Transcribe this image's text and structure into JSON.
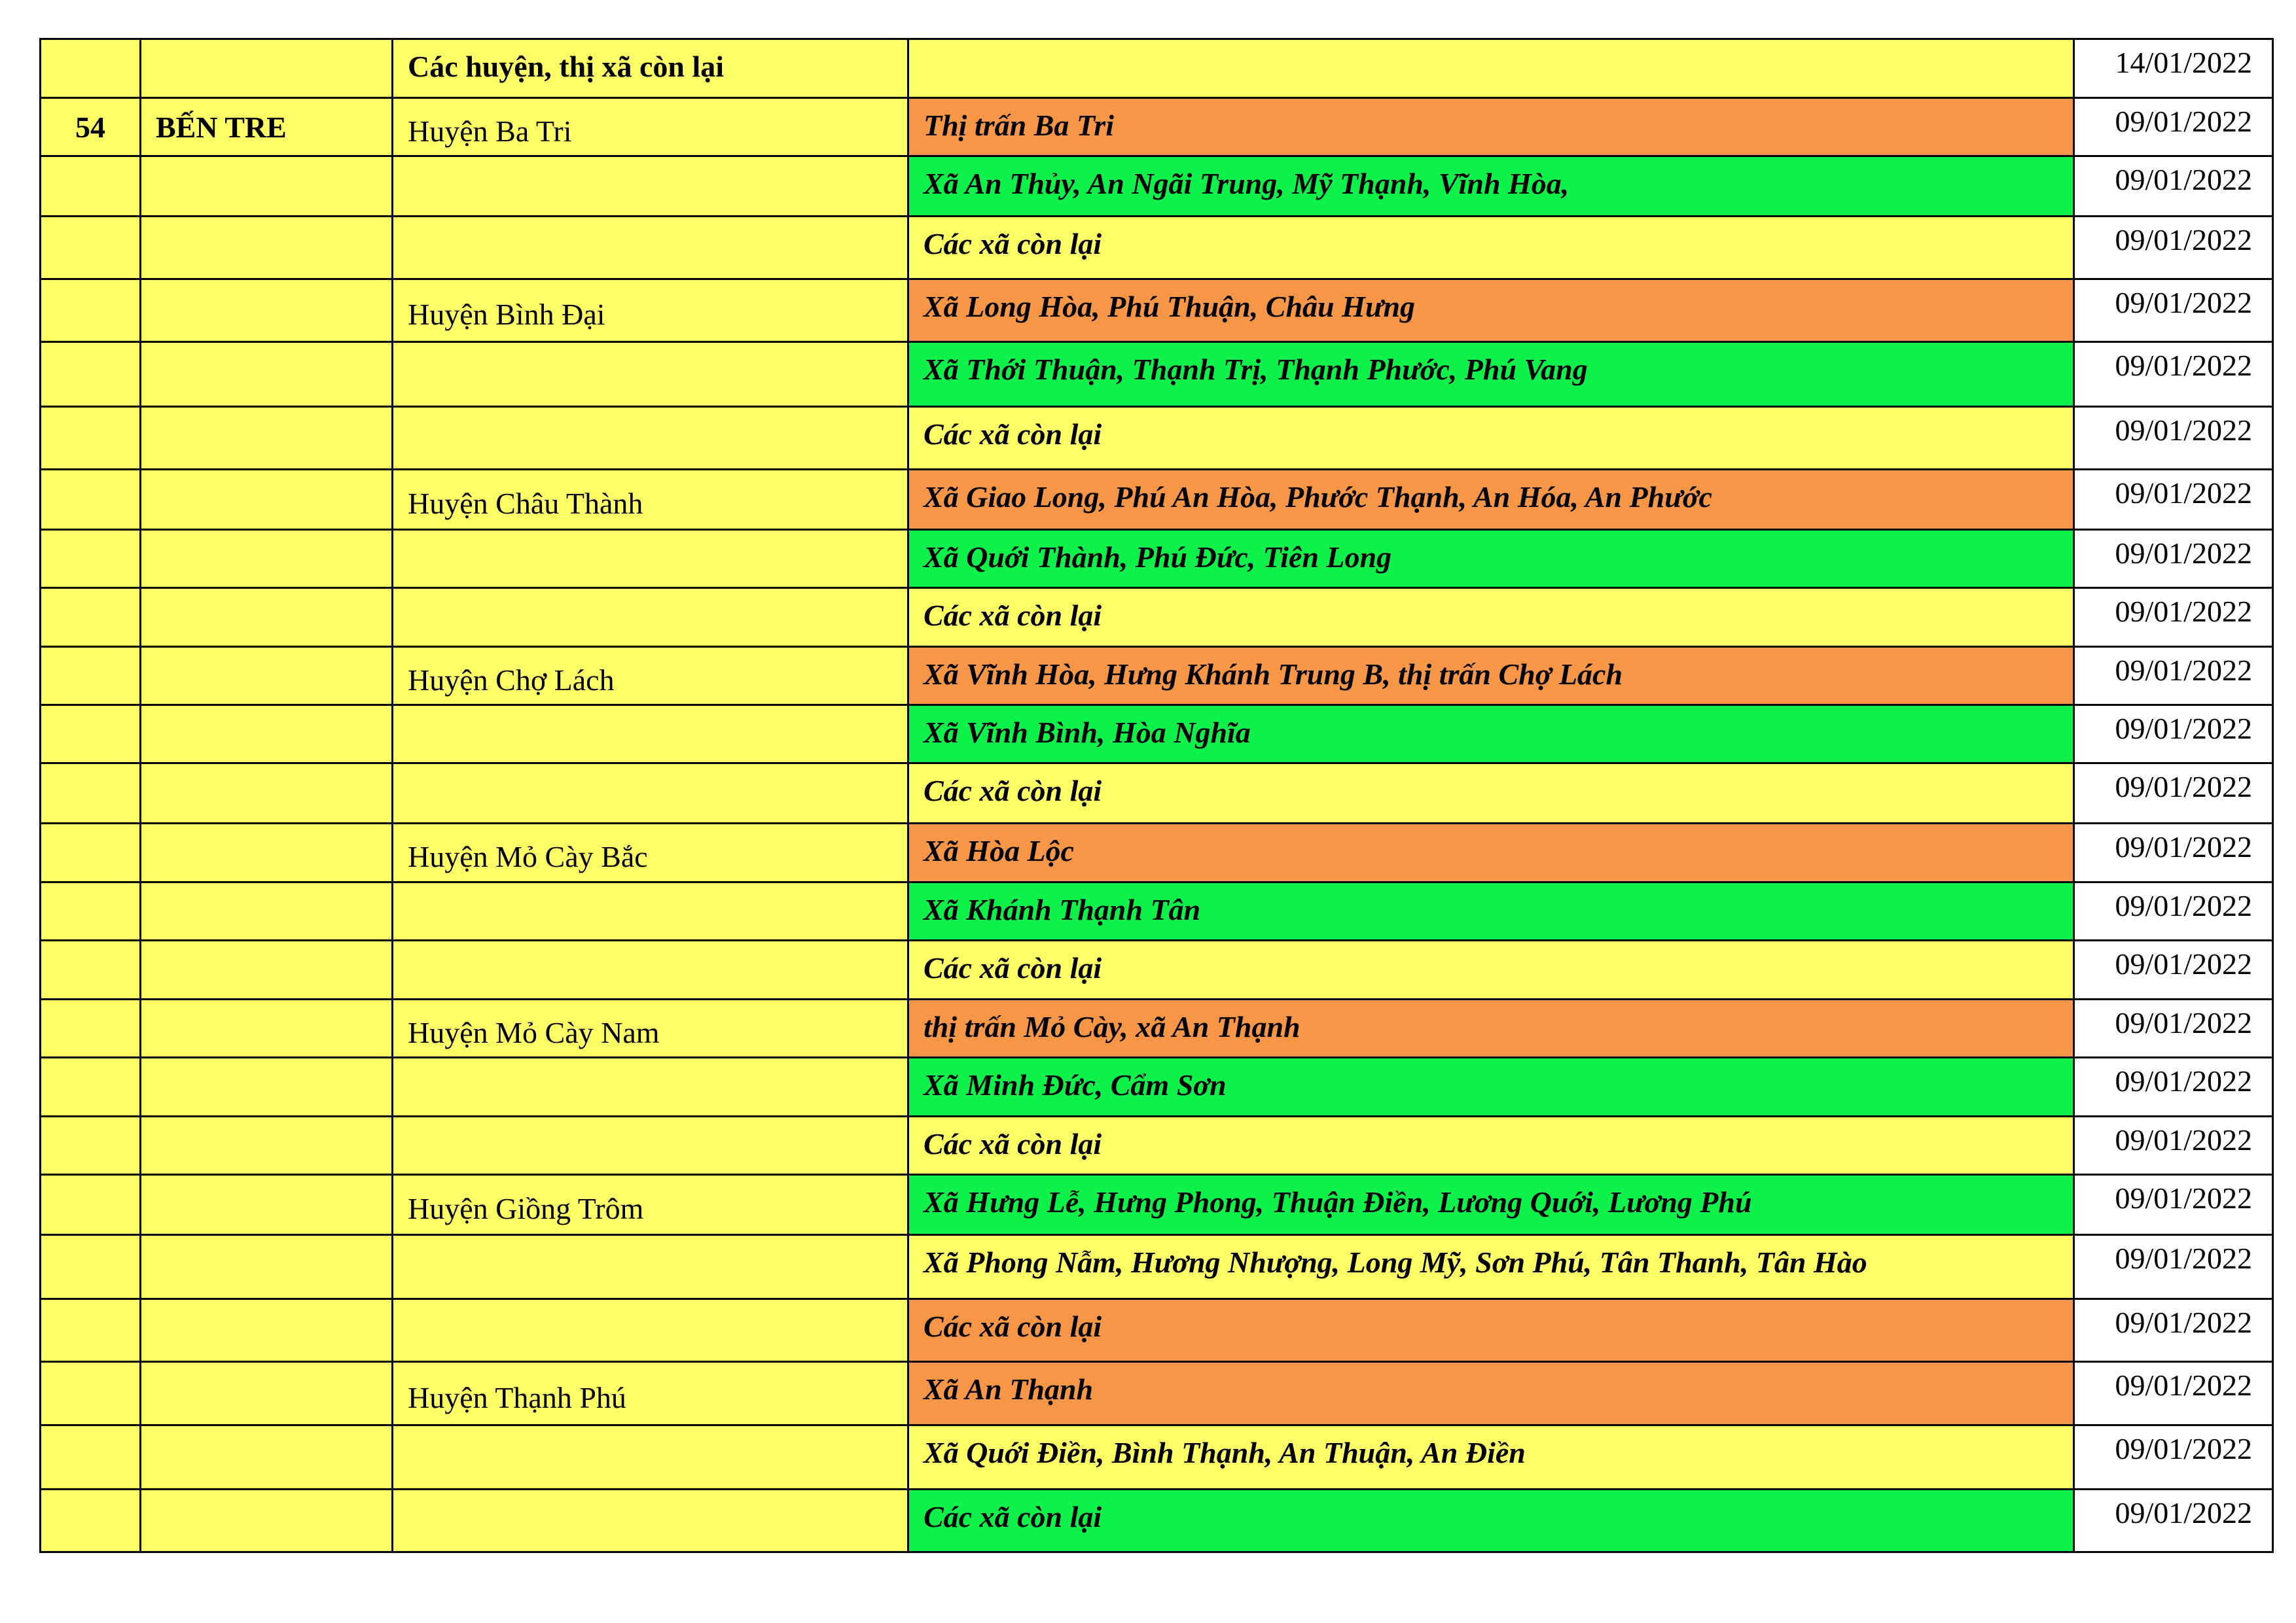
{
  "colors": {
    "yellow": "#FFFF66",
    "orange": "#F79646",
    "green": "#0CF24A"
  },
  "rows": [
    {
      "stt": "",
      "province": "",
      "district": "Các huyện, thị xã còn lại",
      "district_bold": true,
      "commune": "",
      "level": "yellow",
      "date": "14/01/2022"
    },
    {
      "stt": "54",
      "province": "BẾN TRE",
      "district": "Huyện Ba Tri",
      "commune": "Thị trấn Ba Tri",
      "level": "orange",
      "date": "09/01/2022"
    },
    {
      "stt": "",
      "province": "",
      "district": "",
      "commune": "Xã An Thủy, An Ngãi Trung, Mỹ Thạnh, Vĩnh Hòa,",
      "level": "green",
      "date": "09/01/2022"
    },
    {
      "stt": "",
      "province": "",
      "district": "",
      "commune": "Các xã còn lại",
      "level": "yellow",
      "date": "09/01/2022"
    },
    {
      "stt": "",
      "province": "",
      "district": "Huyện Bình Đại",
      "commune": "Xã Long Hòa, Phú Thuận, Châu Hưng",
      "level": "orange",
      "date": "09/01/2022"
    },
    {
      "stt": "",
      "province": "",
      "district": "",
      "commune": "Xã Thới Thuận, Thạnh Trị, Thạnh Phước, Phú Vang",
      "level": "green",
      "date": "09/01/2022"
    },
    {
      "stt": "",
      "province": "",
      "district": "",
      "commune": "Các xã còn lại",
      "level": "yellow",
      "date": "09/01/2022"
    },
    {
      "stt": "",
      "province": "",
      "district": "Huyện Châu Thành",
      "commune": "Xã Giao Long, Phú An Hòa, Phước Thạnh, An Hóa, An Phước",
      "level": "orange",
      "date": "09/01/2022"
    },
    {
      "stt": "",
      "province": "",
      "district": "",
      "commune": "Xã Quới Thành, Phú Đức, Tiên Long",
      "level": "green",
      "date": "09/01/2022"
    },
    {
      "stt": "",
      "province": "",
      "district": "",
      "commune": "Các xã còn lại",
      "level": "yellow",
      "date": "09/01/2022"
    },
    {
      "stt": "",
      "province": "",
      "district": "Huyện Chợ Lách",
      "commune": "Xã Vĩnh Hòa, Hưng Khánh Trung B, thị trấn Chợ Lách",
      "level": "orange",
      "date": "09/01/2022"
    },
    {
      "stt": "",
      "province": "",
      "district": "",
      "commune": "Xã Vĩnh Bình, Hòa Nghĩa",
      "level": "green",
      "date": "09/01/2022"
    },
    {
      "stt": "",
      "province": "",
      "district": "",
      "commune": "Các xã còn lại",
      "level": "yellow",
      "date": "09/01/2022"
    },
    {
      "stt": "",
      "province": "",
      "district": "Huyện Mỏ Cày Bắc",
      "commune": "Xã Hòa Lộc",
      "level": "orange",
      "date": "09/01/2022"
    },
    {
      "stt": "",
      "province": "",
      "district": "",
      "commune": "Xã Khánh Thạnh Tân",
      "level": "green",
      "date": "09/01/2022"
    },
    {
      "stt": "",
      "province": "",
      "district": "",
      "commune": "Các xã còn lại",
      "level": "yellow",
      "date": "09/01/2022"
    },
    {
      "stt": "",
      "province": "",
      "district": "Huyện Mỏ Cày Nam",
      "commune": "thị trấn Mỏ Cày, xã An Thạnh",
      "level": "orange",
      "date": "09/01/2022"
    },
    {
      "stt": "",
      "province": "",
      "district": "",
      "commune": "Xã Minh Đức, Cẩm Sơn",
      "level": "green",
      "date": "09/01/2022"
    },
    {
      "stt": "",
      "province": "",
      "district": "",
      "commune": "Các xã còn lại",
      "level": "yellow",
      "date": "09/01/2022"
    },
    {
      "stt": "",
      "province": "",
      "district": "Huyện Giồng Trôm",
      "commune": "Xã Hưng Lễ, Hưng Phong, Thuận Điền, Lương Quới, Lương Phú",
      "level": "green",
      "date": "09/01/2022"
    },
    {
      "stt": "",
      "province": "",
      "district": "",
      "commune": "Xã Phong Nẫm, Hương Nhượng, Long Mỹ, Sơn Phú, Tân Thanh, Tân Hào",
      "level": "yellow",
      "date": "09/01/2022"
    },
    {
      "stt": "",
      "province": "",
      "district": "",
      "commune": "Các xã còn lại",
      "level": "orange",
      "date": "09/01/2022"
    },
    {
      "stt": "",
      "province": "",
      "district": "Huyện Thạnh Phú",
      "commune": "Xã An Thạnh",
      "level": "orange",
      "date": "09/01/2022"
    },
    {
      "stt": "",
      "province": "",
      "district": "",
      "commune": "Xã Quới Điền, Bình Thạnh, An Thuận, An Điền",
      "level": "yellow",
      "date": "09/01/2022"
    },
    {
      "stt": "",
      "province": "",
      "district": "",
      "commune": "Các xã còn lại",
      "level": "green",
      "date": "09/01/2022"
    }
  ]
}
